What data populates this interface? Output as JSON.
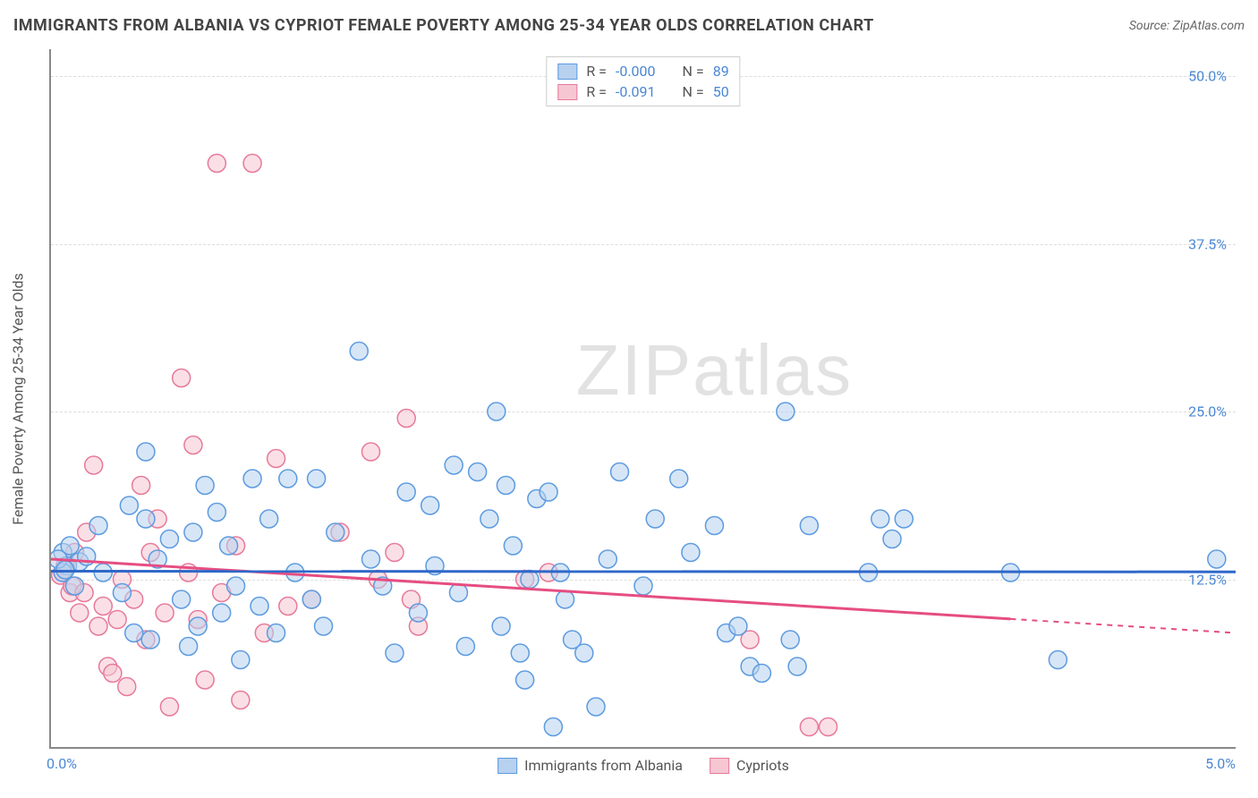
{
  "header": {
    "title": "IMMIGRANTS FROM ALBANIA VS CYPRIOT FEMALE POVERTY AMONG 25-34 YEAR OLDS CORRELATION CHART",
    "source_prefix": "Source: ",
    "source_name": "ZipAtlas.com"
  },
  "axes": {
    "ylabel": "Female Poverty Among 25-34 Year Olds",
    "xmin": 0.0,
    "xmax": 5.0,
    "ymin": 0.0,
    "ymax": 52.0,
    "yticks": [
      {
        "v": 12.5,
        "label": "12.5%"
      },
      {
        "v": 25.0,
        "label": "25.0%"
      },
      {
        "v": 37.5,
        "label": "37.5%"
      },
      {
        "v": 50.0,
        "label": "50.0%"
      }
    ],
    "xticks": [
      {
        "v": 0.0,
        "label": "0.0%",
        "align": "left"
      },
      {
        "v": 5.0,
        "label": "5.0%",
        "align": "right"
      }
    ],
    "grid_color": "#dddddd"
  },
  "series": {
    "blue": {
      "label": "Immigrants from Albania",
      "fill": "#b7d1ef",
      "stroke": "#5d9be0",
      "line_color": "#2f68c9",
      "marker_radius": 10,
      "fill_opacity": 0.55,
      "R": "-0.000",
      "N": "89",
      "trend": {
        "y_start": 13.1,
        "y_end": 13.05,
        "x_solid_end": 5.0
      },
      "points": [
        [
          0.05,
          14.5
        ],
        [
          0.07,
          13.5
        ],
        [
          0.08,
          15.0
        ],
        [
          0.1,
          12.0
        ],
        [
          0.12,
          13.8
        ],
        [
          0.15,
          14.2
        ],
        [
          0.2,
          16.5
        ],
        [
          0.22,
          13.0
        ],
        [
          0.3,
          11.5
        ],
        [
          0.33,
          18.0
        ],
        [
          0.35,
          8.5
        ],
        [
          0.4,
          17.0
        ],
        [
          0.42,
          8.0
        ],
        [
          0.45,
          14.0
        ],
        [
          0.5,
          15.5
        ],
        [
          0.4,
          22.0
        ],
        [
          0.55,
          11.0
        ],
        [
          0.58,
          7.5
        ],
        [
          0.6,
          16.0
        ],
        [
          0.62,
          9.0
        ],
        [
          0.65,
          19.5
        ],
        [
          0.7,
          17.5
        ],
        [
          0.72,
          10.0
        ],
        [
          0.75,
          15.0
        ],
        [
          0.78,
          12.0
        ],
        [
          0.8,
          6.5
        ],
        [
          0.85,
          20.0
        ],
        [
          0.88,
          10.5
        ],
        [
          0.92,
          17.0
        ],
        [
          0.95,
          8.5
        ],
        [
          1.0,
          20.0
        ],
        [
          1.03,
          13.0
        ],
        [
          1.1,
          11.0
        ],
        [
          1.12,
          20.0
        ],
        [
          1.15,
          9.0
        ],
        [
          1.2,
          16.0
        ],
        [
          1.3,
          29.5
        ],
        [
          1.35,
          14.0
        ],
        [
          1.4,
          12.0
        ],
        [
          1.45,
          7.0
        ],
        [
          1.5,
          19.0
        ],
        [
          1.55,
          10.0
        ],
        [
          1.6,
          18.0
        ],
        [
          1.62,
          13.5
        ],
        [
          1.7,
          21.0
        ],
        [
          1.72,
          11.5
        ],
        [
          1.75,
          7.5
        ],
        [
          1.8,
          20.5
        ],
        [
          1.85,
          17.0
        ],
        [
          1.88,
          25.0
        ],
        [
          1.9,
          9.0
        ],
        [
          1.92,
          19.5
        ],
        [
          1.95,
          15.0
        ],
        [
          1.98,
          7.0
        ],
        [
          2.0,
          5.0
        ],
        [
          2.02,
          12.5
        ],
        [
          2.05,
          18.5
        ],
        [
          2.1,
          19.0
        ],
        [
          2.12,
          1.5
        ],
        [
          2.15,
          13.0
        ],
        [
          2.17,
          11.0
        ],
        [
          2.2,
          8.0
        ],
        [
          2.25,
          7.0
        ],
        [
          2.3,
          3.0
        ],
        [
          2.35,
          14.0
        ],
        [
          2.4,
          20.5
        ],
        [
          2.5,
          12.0
        ],
        [
          2.55,
          17.0
        ],
        [
          2.65,
          20.0
        ],
        [
          2.7,
          14.5
        ],
        [
          2.8,
          16.5
        ],
        [
          2.85,
          8.5
        ],
        [
          2.9,
          9.0
        ],
        [
          2.95,
          6.0
        ],
        [
          3.0,
          5.5
        ],
        [
          3.1,
          25.0
        ],
        [
          3.12,
          8.0
        ],
        [
          3.15,
          6.0
        ],
        [
          3.2,
          16.5
        ],
        [
          3.45,
          13.0
        ],
        [
          3.5,
          17.0
        ],
        [
          3.55,
          15.5
        ],
        [
          3.6,
          17.0
        ],
        [
          4.05,
          13.0
        ],
        [
          4.25,
          6.5
        ],
        [
          4.92,
          14.0
        ],
        [
          0.05,
          13.0
        ],
        [
          0.03,
          14.0
        ],
        [
          0.06,
          13.2
        ]
      ]
    },
    "pink": {
      "label": "Cypriots",
      "fill": "#f6c7d2",
      "stroke": "#e77a9b",
      "line_color": "#e64d82",
      "marker_radius": 10,
      "fill_opacity": 0.55,
      "R": "-0.091",
      "N": "50",
      "trend": {
        "y_start": 14.0,
        "y_end": 8.5,
        "x_solid_end": 4.05
      },
      "points": [
        [
          0.05,
          13.0
        ],
        [
          0.08,
          11.5
        ],
        [
          0.1,
          14.5
        ],
        [
          0.12,
          10.0
        ],
        [
          0.15,
          16.0
        ],
        [
          0.18,
          21.0
        ],
        [
          0.2,
          9.0
        ],
        [
          0.22,
          10.5
        ],
        [
          0.24,
          6.0
        ],
        [
          0.26,
          5.5
        ],
        [
          0.28,
          9.5
        ],
        [
          0.3,
          12.5
        ],
        [
          0.32,
          4.5
        ],
        [
          0.35,
          11.0
        ],
        [
          0.38,
          19.5
        ],
        [
          0.4,
          8.0
        ],
        [
          0.42,
          14.5
        ],
        [
          0.45,
          17.0
        ],
        [
          0.48,
          10.0
        ],
        [
          0.5,
          3.0
        ],
        [
          0.55,
          27.5
        ],
        [
          0.58,
          13.0
        ],
        [
          0.6,
          22.5
        ],
        [
          0.62,
          9.5
        ],
        [
          0.65,
          5.0
        ],
        [
          0.7,
          43.5
        ],
        [
          0.72,
          11.5
        ],
        [
          0.78,
          15.0
        ],
        [
          0.8,
          3.5
        ],
        [
          0.85,
          43.5
        ],
        [
          0.9,
          8.5
        ],
        [
          0.95,
          21.5
        ],
        [
          1.0,
          10.5
        ],
        [
          1.1,
          11.0
        ],
        [
          1.22,
          16.0
        ],
        [
          1.35,
          22.0
        ],
        [
          1.38,
          12.5
        ],
        [
          1.45,
          14.5
        ],
        [
          1.5,
          24.5
        ],
        [
          1.52,
          11.0
        ],
        [
          1.55,
          9.0
        ],
        [
          2.0,
          12.5
        ],
        [
          2.1,
          13.0
        ],
        [
          2.95,
          8.0
        ],
        [
          3.2,
          1.5
        ],
        [
          3.28,
          1.5
        ],
        [
          0.04,
          12.8
        ],
        [
          0.06,
          13.5
        ],
        [
          0.09,
          12.0
        ],
        [
          0.14,
          11.5
        ]
      ]
    }
  },
  "top_legend_labels": {
    "R": "R =",
    "N": "N ="
  },
  "watermark": "ZIPatlas",
  "background_color": "#ffffff"
}
